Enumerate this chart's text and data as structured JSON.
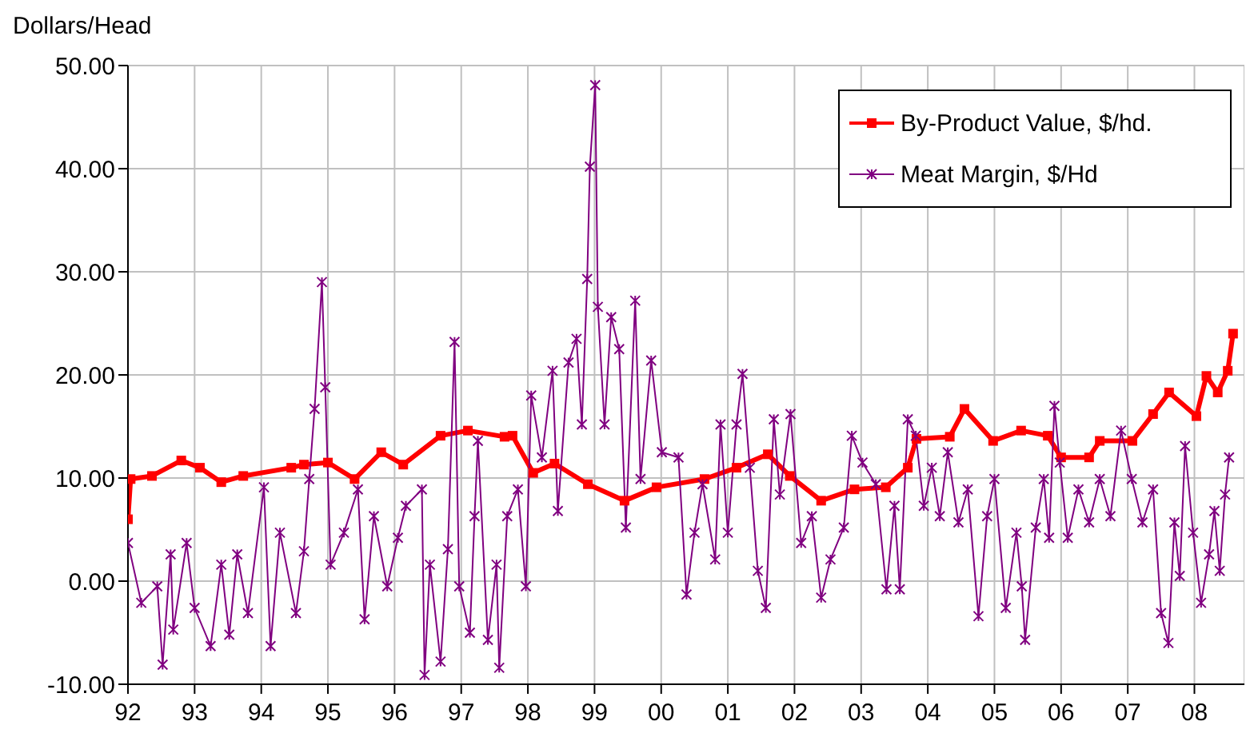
{
  "chart_data": {
    "type": "line",
    "ylabel": "Dollars/Head",
    "xlim": [
      1992,
      2008.75
    ],
    "ylim": [
      -10,
      50
    ],
    "xticks": [
      {
        "value": 1992,
        "label": "92"
      },
      {
        "value": 1993,
        "label": "93"
      },
      {
        "value": 1994,
        "label": "94"
      },
      {
        "value": 1995,
        "label": "95"
      },
      {
        "value": 1996,
        "label": "96"
      },
      {
        "value": 1997,
        "label": "97"
      },
      {
        "value": 1998,
        "label": "98"
      },
      {
        "value": 1999,
        "label": "99"
      },
      {
        "value": 2000,
        "label": "00"
      },
      {
        "value": 2001,
        "label": "01"
      },
      {
        "value": 2002,
        "label": "02"
      },
      {
        "value": 2003,
        "label": "03"
      },
      {
        "value": 2004,
        "label": "04"
      },
      {
        "value": 2005,
        "label": "05"
      },
      {
        "value": 2006,
        "label": "06"
      },
      {
        "value": 2007,
        "label": "07"
      },
      {
        "value": 2008,
        "label": "08"
      }
    ],
    "yticks": [
      {
        "value": -10,
        "label": "-10.00"
      },
      {
        "value": 0,
        "label": "0.00"
      },
      {
        "value": 10,
        "label": "10.00"
      },
      {
        "value": 20,
        "label": "20.00"
      },
      {
        "value": 30,
        "label": "30.00"
      },
      {
        "value": 40,
        "label": "40.00"
      },
      {
        "value": 50,
        "label": "50.00"
      }
    ],
    "grid": true,
    "legend": "top right",
    "series": [
      {
        "name": "By-Product Value, $/hd.",
        "color": "#ff0000",
        "marker": "square",
        "x": [
          1992.0,
          1992.04,
          1992.36,
          1992.8,
          1993.08,
          1993.4,
          1993.73,
          1994.45,
          1994.64,
          1995.0,
          1995.4,
          1995.8,
          1996.13,
          1996.69,
          1997.1,
          1997.65,
          1997.77,
          1998.08,
          1998.4,
          1998.9,
          1999.45,
          1999.93,
          2000.65,
          2001.13,
          2001.6,
          2001.93,
          2002.4,
          2002.9,
          2003.37,
          2003.7,
          2003.83,
          2004.33,
          2004.55,
          2004.98,
          2005.4,
          2005.8,
          2006.0,
          2006.42,
          2006.58,
          2007.07,
          2007.38,
          2007.62,
          2008.03,
          2008.18,
          2008.35,
          2008.5,
          2008.58
        ],
        "values": [
          6.0,
          9.9,
          10.2,
          11.7,
          11.0,
          9.6,
          10.2,
          11.0,
          11.3,
          11.5,
          9.9,
          12.5,
          11.3,
          14.1,
          14.6,
          14.0,
          14.1,
          10.5,
          11.4,
          9.4,
          7.8,
          9.1,
          9.9,
          11.0,
          12.3,
          10.2,
          7.8,
          8.9,
          9.1,
          11.0,
          13.8,
          14.0,
          16.7,
          13.6,
          14.6,
          14.1,
          12.0,
          12.0,
          13.6,
          13.6,
          16.2,
          18.3,
          16.0,
          19.9,
          18.3,
          20.4,
          24.0
        ]
      },
      {
        "name": "Meat Margin, $/Hd",
        "color": "#800080",
        "marker": "cross",
        "x": [
          1992.0,
          1992.2,
          1992.44,
          1992.52,
          1992.64,
          1992.68,
          1992.88,
          1993.0,
          1993.24,
          1993.4,
          1993.52,
          1993.64,
          1993.8,
          1994.04,
          1994.14,
          1994.28,
          1994.52,
          1994.64,
          1994.72,
          1994.8,
          1994.91,
          1994.96,
          1995.04,
          1995.24,
          1995.45,
          1995.55,
          1995.69,
          1995.89,
          1996.05,
          1996.17,
          1996.41,
          1996.45,
          1996.53,
          1996.69,
          1996.8,
          1996.9,
          1996.97,
          1997.13,
          1997.2,
          1997.25,
          1997.4,
          1997.53,
          1997.57,
          1997.69,
          1997.85,
          1997.97,
          1998.05,
          1998.21,
          1998.37,
          1998.45,
          1998.61,
          1998.73,
          1998.81,
          1998.89,
          1998.93,
          1999.01,
          1999.05,
          1999.15,
          1999.25,
          1999.37,
          1999.47,
          1999.61,
          1999.69,
          1999.85,
          2000.01,
          2000.26,
          2000.38,
          2000.5,
          2000.62,
          2000.81,
          2000.89,
          2001.0,
          2001.13,
          2001.22,
          2001.33,
          2001.45,
          2001.57,
          2001.69,
          2001.78,
          2001.94,
          2002.1,
          2002.26,
          2002.4,
          2002.54,
          2002.74,
          2002.86,
          2003.02,
          2003.22,
          2003.38,
          2003.5,
          2003.58,
          2003.7,
          2003.82,
          2003.94,
          2004.06,
          2004.18,
          2004.3,
          2004.46,
          2004.6,
          2004.76,
          2004.89,
          2005.0,
          2005.17,
          2005.33,
          2005.41,
          2005.46,
          2005.62,
          2005.74,
          2005.82,
          2005.9,
          2005.98,
          2006.1,
          2006.26,
          2006.42,
          2006.58,
          2006.74,
          2006.9,
          2007.06,
          2007.22,
          2007.38,
          2007.5,
          2007.61,
          2007.7,
          2007.78,
          2007.86,
          2007.98,
          2008.1,
          2008.22,
          2008.3,
          2008.38,
          2008.46,
          2008.52
        ],
        "values": [
          3.7,
          -2.1,
          -0.5,
          -8.1,
          2.6,
          -4.7,
          3.7,
          -2.6,
          -6.3,
          1.6,
          -5.2,
          2.6,
          -3.1,
          9.1,
          -6.3,
          4.7,
          -3.1,
          2.9,
          9.9,
          16.7,
          29.0,
          18.8,
          1.6,
          4.7,
          8.9,
          -3.7,
          6.3,
          -0.5,
          4.2,
          7.3,
          8.9,
          -9.1,
          1.6,
          -7.8,
          3.1,
          23.2,
          -0.5,
          -5.0,
          6.3,
          13.6,
          -5.7,
          1.6,
          -8.4,
          6.3,
          8.9,
          -0.5,
          18.0,
          12.0,
          20.4,
          6.8,
          21.2,
          23.5,
          15.2,
          29.3,
          40.2,
          48.1,
          26.6,
          15.2,
          25.6,
          22.5,
          5.2,
          27.2,
          9.9,
          21.4,
          12.5,
          12.0,
          -1.3,
          4.7,
          9.4,
          2.1,
          15.2,
          4.7,
          15.2,
          20.1,
          11.0,
          1.0,
          -2.6,
          15.7,
          8.4,
          16.2,
          3.7,
          6.3,
          -1.6,
          2.1,
          5.2,
          14.1,
          11.5,
          9.4,
          -0.8,
          7.3,
          -0.8,
          15.7,
          14.1,
          7.3,
          11.0,
          6.3,
          12.5,
          5.7,
          8.9,
          -3.4,
          6.3,
          9.9,
          -2.6,
          4.7,
          -0.5,
          -5.7,
          5.2,
          9.9,
          4.2,
          17.0,
          11.5,
          4.2,
          8.9,
          5.7,
          9.9,
          6.3,
          14.6,
          9.9,
          5.7,
          8.9,
          -3.1,
          -6.0,
          5.7,
          0.5,
          13.1,
          4.7,
          -2.1,
          2.6,
          6.8,
          1.0,
          8.4,
          12.0
        ]
      }
    ]
  }
}
